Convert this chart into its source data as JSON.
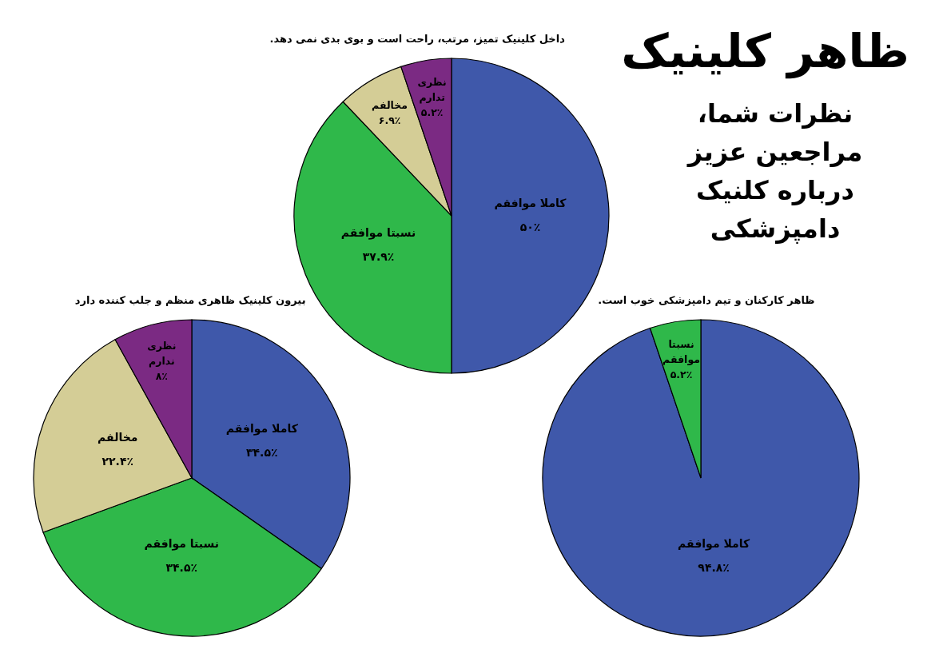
{
  "chart_data": [
    {
      "type": "other",
      "title": "ظاهر کلینیک",
      "subtitle": "نظرات شما، مراجعین عزیز درباره کلنیک دامپزشکی"
    },
    {
      "type": "pie",
      "title": "داخل کلینیک تمیز، مرتب، راحت است و بوی بدی نمی دهد.",
      "categories": [
        "کاملا موافقم",
        "نسبتا موافقم",
        "مخالفم",
        "نظری تدارم"
      ],
      "values": [
        50,
        37.9,
        6.9,
        5.2
      ],
      "value_labels": [
        "۵۰٪",
        "۳۷.۹٪",
        "۶.۹٪",
        "۵.۲٪"
      ],
      "colors": [
        "#3f58aa",
        "#2fb84a",
        "#d4cd96",
        "#7b2a83"
      ]
    },
    {
      "type": "pie",
      "title": "ظاهر کارکنان و تیم دامپزشکی خوب است.",
      "categories": [
        "کاملا موافقم",
        "نسبتا موافقم"
      ],
      "values": [
        94.8,
        5.2
      ],
      "value_labels": [
        "۹۴.۸٪",
        "۵.۲٪"
      ],
      "colors": [
        "#3f58aa",
        "#2fb84a"
      ]
    },
    {
      "type": "pie",
      "title": "بیرون کلینیک ظاهری منظم و جلب کننده دارد",
      "categories": [
        "کاملا موافقم",
        "نسبتا موافقم",
        "مخالفم",
        "نظری ندارم"
      ],
      "values": [
        34.5,
        34.5,
        22.4,
        8
      ],
      "value_labels": [
        "۳۴.۵٪",
        "۳۴.۵٪",
        "۲۲.۴٪",
        "۸٪"
      ],
      "colors": [
        "#3f58aa",
        "#2fb84a",
        "#d4cd96",
        "#7b2a83"
      ]
    }
  ]
}
